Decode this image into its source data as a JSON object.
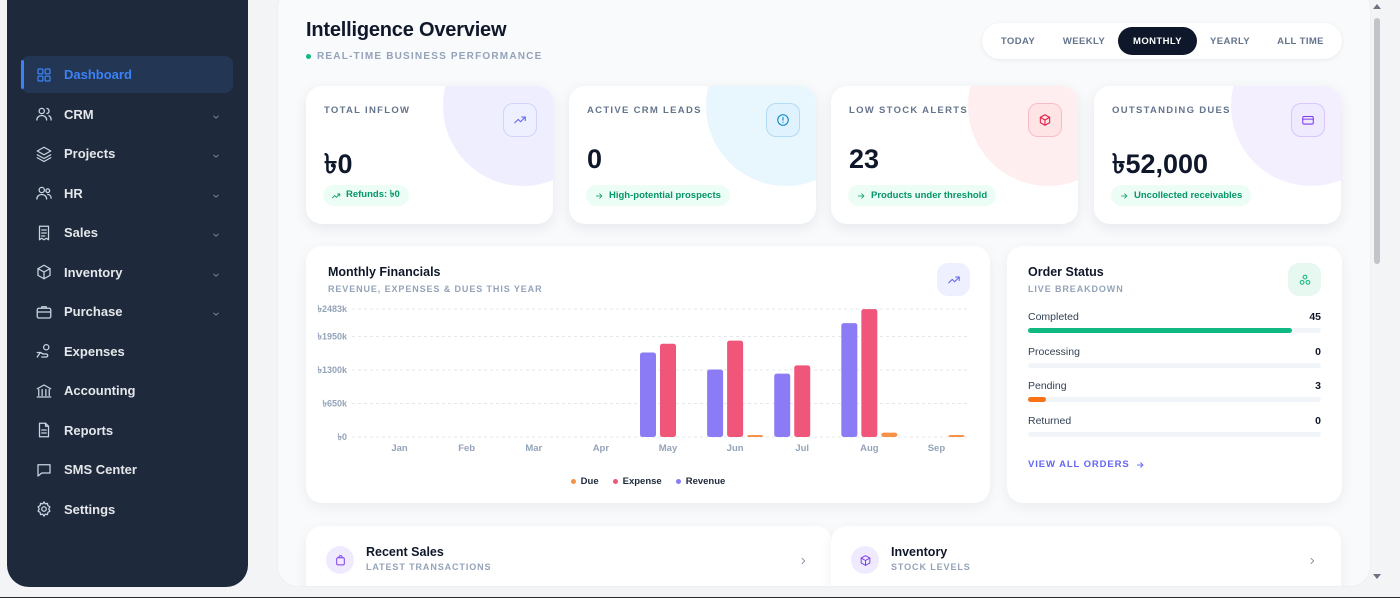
{
  "sidebar": {
    "items": [
      {
        "name": "dashboard",
        "label": "Dashboard",
        "icon": "grid-icon",
        "active": true,
        "chevron": false
      },
      {
        "name": "crm",
        "label": "CRM",
        "icon": "users-icon",
        "active": false,
        "chevron": true
      },
      {
        "name": "projects",
        "label": "Projects",
        "icon": "layers-icon",
        "active": false,
        "chevron": true
      },
      {
        "name": "hr",
        "label": "HR",
        "icon": "user-group-icon",
        "active": false,
        "chevron": true
      },
      {
        "name": "sales",
        "label": "Sales",
        "icon": "receipt-icon",
        "active": false,
        "chevron": true
      },
      {
        "name": "inventory",
        "label": "Inventory",
        "icon": "box-icon",
        "active": false,
        "chevron": true
      },
      {
        "name": "purchase",
        "label": "Purchase",
        "icon": "briefcase-icon",
        "active": false,
        "chevron": true
      },
      {
        "name": "expenses",
        "label": "Expenses",
        "icon": "hand-coins-icon",
        "active": false,
        "chevron": false
      },
      {
        "name": "accounting",
        "label": "Accounting",
        "icon": "bank-icon",
        "active": false,
        "chevron": false
      },
      {
        "name": "reports",
        "label": "Reports",
        "icon": "file-text-icon",
        "active": false,
        "chevron": false
      },
      {
        "name": "sms-center",
        "label": "SMS Center",
        "icon": "message-icon",
        "active": false,
        "chevron": false
      },
      {
        "name": "settings",
        "label": "Settings",
        "icon": "gear-icon",
        "active": false,
        "chevron": false
      }
    ]
  },
  "header": {
    "title": "Intelligence Overview",
    "subtitle": "REAL-TIME BUSINESS PERFORMANCE",
    "range_tabs": [
      {
        "label": "TODAY",
        "active": false
      },
      {
        "label": "WEEKLY",
        "active": false
      },
      {
        "label": "MONTHLY",
        "active": true
      },
      {
        "label": "YEARLY",
        "active": false
      },
      {
        "label": "ALL TIME",
        "active": false
      }
    ]
  },
  "stats": [
    {
      "name": "total-inflow",
      "label": "TOTAL INFLOW",
      "value": "৳0",
      "pill": "Refunds: ৳0",
      "pill_icon": "trend-up-icon",
      "icon": "trend-up-icon",
      "accent": "#6366f1",
      "icon_bg": "#eef0ff",
      "glow": "#eeeeff"
    },
    {
      "name": "active-crm-leads",
      "label": "ACTIVE CRM LEADS",
      "value": "0",
      "pill": "High-potential prospects",
      "pill_icon": "arrow-right-icon",
      "icon": "alert-circle-icon",
      "accent": "#0284c7",
      "icon_bg": "#e0f2fe",
      "glow": "#e8f6fd"
    },
    {
      "name": "low-stock-alerts",
      "label": "LOW STOCK ALERTS",
      "value": "23",
      "pill": "Products under threshold",
      "pill_icon": "arrow-right-icon",
      "icon": "cube-icon",
      "accent": "#e11d48",
      "icon_bg": "#ffe4e6",
      "glow": "#ffeef0"
    },
    {
      "name": "outstanding-dues",
      "label": "OUTSTANDING DUES",
      "value": "৳52,000",
      "pill": "Uncollected receivables",
      "pill_icon": "arrow-right-icon",
      "icon": "credit-card-icon",
      "accent": "#7c3aed",
      "icon_bg": "#f0eaff",
      "glow": "#f4efff"
    }
  ],
  "financials": {
    "title": "Monthly Financials",
    "subtitle": "REVENUE, EXPENSES & DUES THIS YEAR",
    "icon": "trend-up-icon"
  },
  "chart_data": {
    "type": "bar",
    "categories": [
      "Jan",
      "Feb",
      "Mar",
      "Apr",
      "May",
      "Jun",
      "Jul",
      "Aug",
      "Sep"
    ],
    "y_ticks": [
      "৳0",
      "৳650k",
      "৳1300k",
      "৳1950k",
      "৳2483k"
    ],
    "y_tick_values": [
      0,
      650,
      1300,
      1950,
      2483
    ],
    "ylim": [
      0,
      2483
    ],
    "unit": "k",
    "series": [
      {
        "name": "Revenue",
        "color": "#8b7cf6",
        "values": [
          0,
          0,
          0,
          0,
          1640,
          1310,
          1230,
          2210,
          0
        ]
      },
      {
        "name": "Expense",
        "color": "#f0567a",
        "values": [
          0,
          0,
          0,
          0,
          1810,
          1870,
          1390,
          2480,
          0
        ]
      },
      {
        "name": "Due",
        "color": "#f5924a",
        "values": [
          0,
          0,
          0,
          0,
          0,
          25,
          0,
          85,
          40
        ]
      }
    ],
    "legend": [
      "Due",
      "Expense",
      "Revenue"
    ],
    "legend_position": "bottom",
    "grid": true
  },
  "order_status": {
    "title": "Order Status",
    "subtitle": "LIVE BREAKDOWN",
    "icon": "hub-icon",
    "items": [
      {
        "label": "Completed",
        "count": "45",
        "fraction": 0.9,
        "color": "#10b981"
      },
      {
        "label": "Processing",
        "count": "0",
        "fraction": 0,
        "color": "#3b82f6"
      },
      {
        "label": "Pending",
        "count": "3",
        "fraction": 0.06,
        "color": "#f97316"
      },
      {
        "label": "Returned",
        "count": "0",
        "fraction": 0,
        "color": "#ef4444"
      }
    ],
    "view_all": "VIEW ALL ORDERS"
  },
  "recent_sales": {
    "title": "Recent Sales",
    "subtitle": "LATEST TRANSACTIONS",
    "icon": "shopping-bag-icon"
  },
  "inventory_panel": {
    "title": "Inventory",
    "subtitle": "STOCK LEVELS",
    "icon": "cube-icon"
  }
}
